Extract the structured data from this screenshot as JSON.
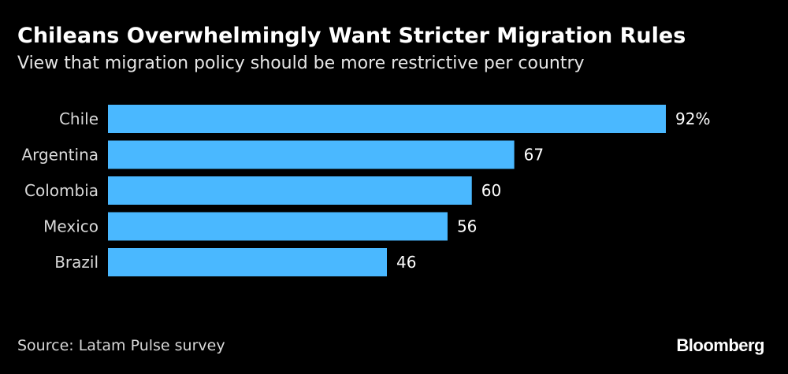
{
  "header": {
    "title": "Chileans Overwhelmingly Want Stricter Migration Rules",
    "subtitle": "View that migration policy should be more restrictive per country"
  },
  "footer": {
    "source": "Source: Latam Pulse survey",
    "logo": "Bloomberg"
  },
  "colors": {
    "bar": "#4ab8ff",
    "background": "#000000",
    "text": "#ffffff"
  },
  "chart_data": {
    "type": "bar",
    "orientation": "horizontal",
    "title": "Chileans Overwhelmingly Want Stricter Migration Rules",
    "subtitle": "View that migration policy should be more restrictive per country",
    "categories": [
      "Chile",
      "Argentina",
      "Colombia",
      "Mexico",
      "Brazil"
    ],
    "values": [
      92,
      67,
      60,
      56,
      46
    ],
    "value_labels": [
      "92%",
      "67",
      "60",
      "56",
      "46"
    ],
    "xlim": [
      0,
      92
    ],
    "grid": false,
    "legend": "none"
  }
}
